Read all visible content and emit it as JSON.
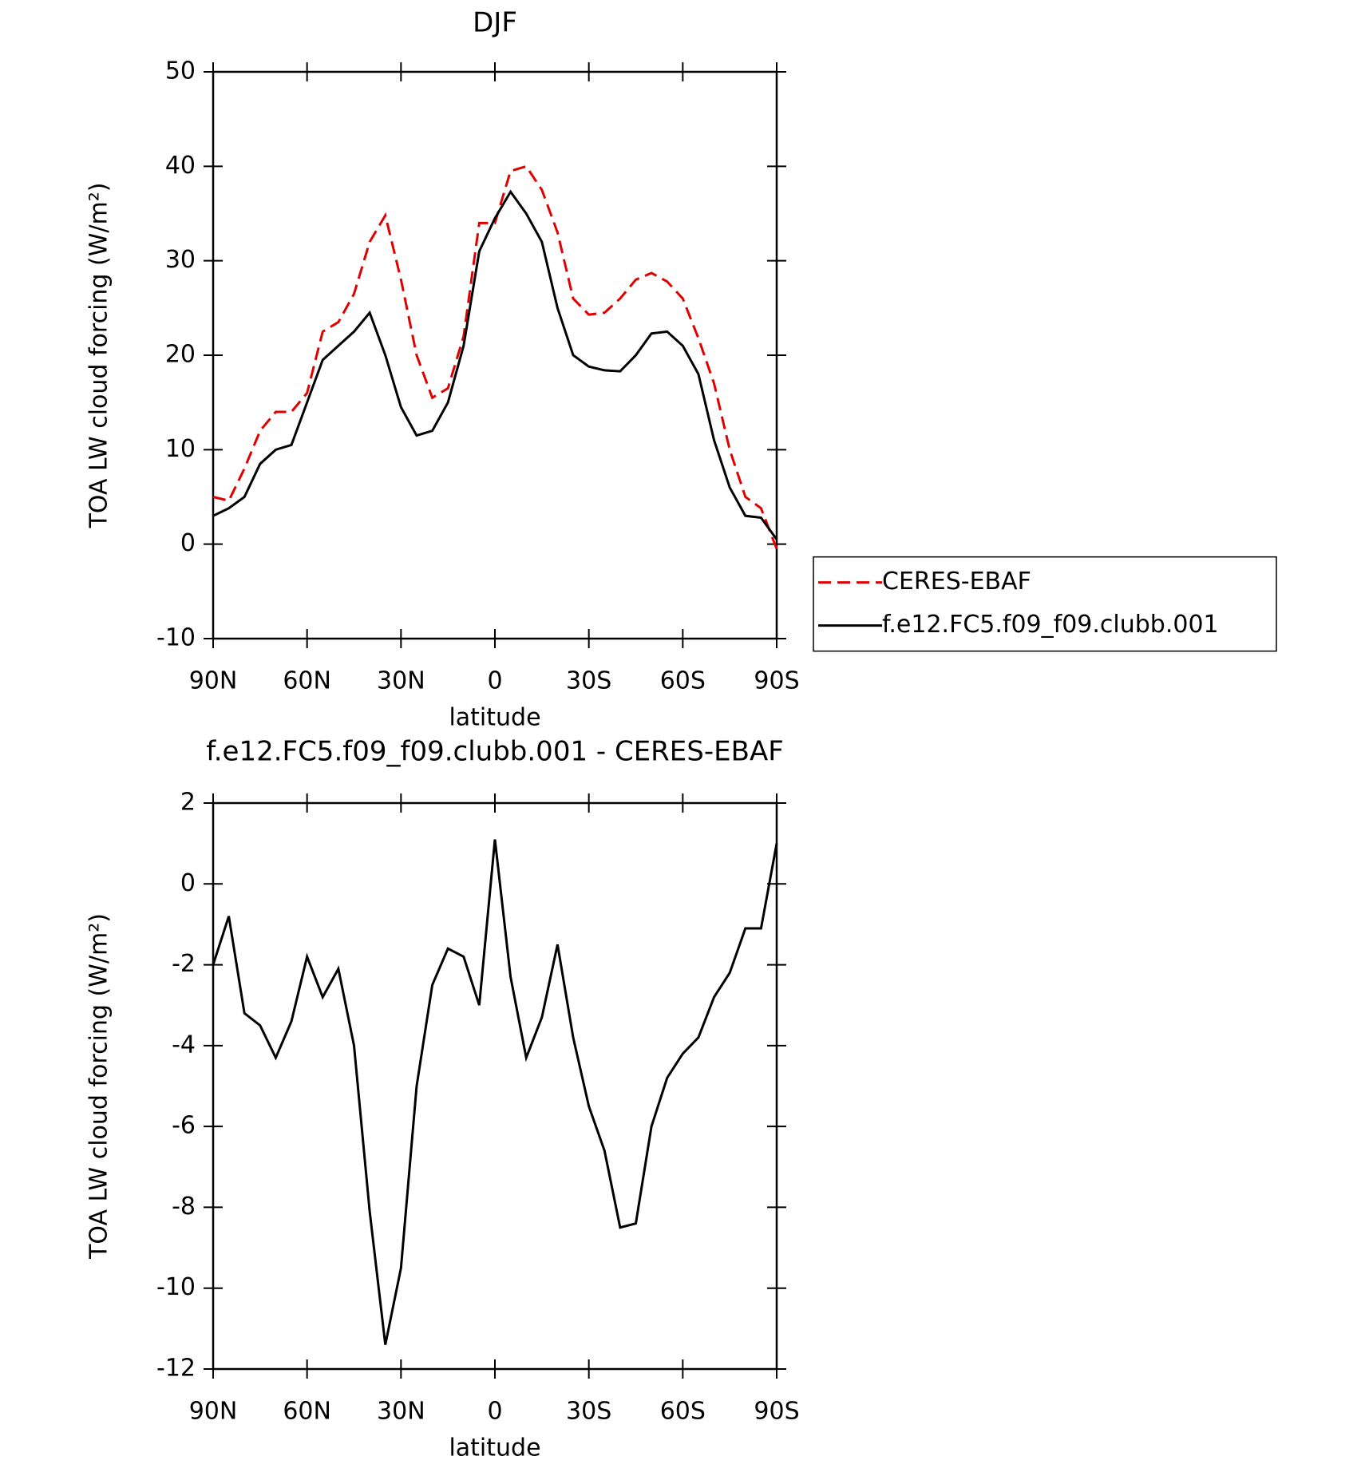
{
  "chart_data": [
    {
      "type": "line",
      "title": "DJF",
      "x_label": "latitude",
      "y_label": "TOA LW cloud forcing (W/m²)",
      "x": [
        90,
        85,
        80,
        75,
        70,
        65,
        60,
        55,
        50,
        45,
        40,
        35,
        30,
        25,
        20,
        15,
        10,
        5,
        0,
        -5,
        -10,
        -15,
        -20,
        -25,
        -30,
        -35,
        -40,
        -45,
        -50,
        -55,
        -60,
        -65,
        -70,
        -75,
        -80,
        -85,
        -90
      ],
      "series": [
        {
          "name": "CERES-EBAF",
          "color": "#e00000",
          "dashed": true,
          "values": [
            5,
            4.6,
            8,
            12,
            14,
            14,
            16,
            22.5,
            23.5,
            26.5,
            32,
            34.8,
            28,
            20,
            15.5,
            16.5,
            22,
            34,
            34,
            39.5,
            40,
            37.5,
            33,
            26,
            24.3,
            24.5,
            26,
            28,
            28.7,
            27.8,
            26,
            21.8,
            17,
            10,
            5,
            3.8,
            -0.5
          ]
        },
        {
          "name": "f.e12.FC5.f09_f09.clubb.001",
          "color": "#000000",
          "dashed": false,
          "values": [
            3,
            3.8,
            5,
            8.5,
            10,
            10.5,
            15,
            19.5,
            21,
            22.5,
            24.5,
            20,
            14.5,
            11.5,
            12,
            15,
            21,
            31,
            34.5,
            37.3,
            35,
            32,
            25,
            20,
            18.8,
            18.4,
            18.3,
            20,
            22.3,
            22.5,
            21,
            18,
            11,
            6,
            3,
            2.8,
            0.5
          ]
        }
      ],
      "xlim": [
        90,
        -90
      ],
      "xticks": [
        {
          "value": 90,
          "label": "90N"
        },
        {
          "value": 60,
          "label": "60N"
        },
        {
          "value": 30,
          "label": "30N"
        },
        0,
        {
          "value": -30,
          "label": "30S"
        },
        {
          "value": -60,
          "label": "60S"
        },
        {
          "value": -90,
          "label": "90S"
        }
      ],
      "ylim": [
        -10,
        50
      ],
      "yticks": [
        -10,
        0,
        10,
        20,
        30,
        40,
        50
      ],
      "legend": "right"
    },
    {
      "type": "line",
      "title": "f.e12.FC5.f09_f09.clubb.001 - CERES-EBAF",
      "x_label": "latitude",
      "y_label": "TOA LW cloud forcing (W/m²)",
      "x": [
        90,
        85,
        80,
        75,
        70,
        65,
        60,
        55,
        50,
        45,
        40,
        35,
        30,
        25,
        20,
        15,
        10,
        5,
        0,
        -5,
        -10,
        -15,
        -20,
        -25,
        -30,
        -35,
        -40,
        -45,
        -50,
        -55,
        -60,
        -65,
        -70,
        -75,
        -80,
        -85,
        -90
      ],
      "color": "#000000",
      "values": [
        -2,
        -0.8,
        -3.2,
        -3.5,
        -4.3,
        -3.4,
        -1.8,
        -2.8,
        -2.1,
        -4,
        -8.1,
        -11.4,
        -9.5,
        -5,
        -2.5,
        -1.6,
        -1.8,
        -3,
        1.1,
        -2.3,
        -4.3,
        -3.3,
        -1.5,
        -3.8,
        -5.5,
        -6.6,
        -8.5,
        -8.4,
        -6,
        -4.8,
        -4.2,
        -3.8,
        -2.8,
        -2.2,
        -1.1,
        -1.1,
        1
      ],
      "xlim": [
        90,
        -90
      ],
      "xticks": [
        {
          "value": 90,
          "label": "90N"
        },
        {
          "value": 60,
          "label": "60N"
        },
        {
          "value": 30,
          "label": "30N"
        },
        0,
        {
          "value": -30,
          "label": "30S"
        },
        {
          "value": -60,
          "label": "60S"
        },
        {
          "value": -90,
          "label": "90S"
        }
      ],
      "ylim": [
        -12,
        2
      ],
      "yticks": [
        -12,
        -10,
        -8,
        -6,
        -4,
        -2,
        0,
        2
      ]
    }
  ]
}
